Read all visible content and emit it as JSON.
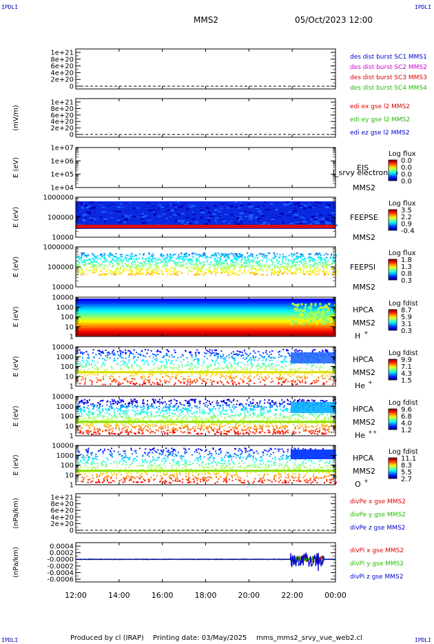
{
  "header": {
    "corner_tl": "IPDLI",
    "corner_tr": "IPDLI",
    "corner_bl": "IPDLI",
    "corner_br": "IPDLI",
    "spacecraft": "MMS2",
    "datetime": "05/Oct/2023 12:00"
  },
  "footer": {
    "produced_by": "Produced by cl (IRAP)",
    "printing_date": "Printing date: 03/May/2025",
    "script": "mms_mms2_srvy_vue_web2.cl"
  },
  "colors": {
    "red": "#dd0000",
    "green": "#22bb00",
    "blue": "#0000cc",
    "magenta": "#cc00cc",
    "dashed": "#000000"
  },
  "chart_data": [
    {
      "type": "line",
      "name": "des-dist-burst",
      "ylabel": "",
      "y_ticks": [
        "1e+21",
        "8e+20",
        "6e+20",
        "4e+20",
        "2e+20",
        "0"
      ],
      "legend": [
        {
          "label": "des dist burst SC1 MMS1",
          "color": "#0000cc"
        },
        {
          "label": "des dist burst SC2 MMS2",
          "color": "#cc00cc"
        },
        {
          "label": "des dist burst SC3 MMS3",
          "color": "#dd0000"
        },
        {
          "label": "des dist burst SC4 MMS4",
          "color": "#22bb00"
        }
      ],
      "series": []
    },
    {
      "type": "line",
      "name": "edi-e-gse",
      "ylabel": "(mV/m)",
      "y_ticks": [
        "1e+21",
        "8e+20",
        "6e+20",
        "4e+20",
        "2e+20",
        "0"
      ],
      "legend": [
        {
          "label": "edi ex gse l2 MMS2",
          "color": "#dd0000"
        },
        {
          "label": "edi ey gse l2 MMS2",
          "color": "#22bb00"
        },
        {
          "label": "edi ez gse l2 MMS2",
          "color": "#0000cc"
        }
      ],
      "series": []
    },
    {
      "type": "heatmap",
      "name": "eis",
      "ylabel": "E (eV)",
      "y_ticks": [
        "1e+07",
        "1e+06",
        "1e+05",
        "1e+04"
      ],
      "labels": [
        "EIS",
        "MMS2"
      ],
      "overlay_text": "l_srvy electron to",
      "colorbar": {
        "title": "Log flux",
        "ticks": [
          "0.0",
          "0.0",
          "0.0",
          "0.0"
        ]
      }
    },
    {
      "type": "heatmap",
      "name": "feeps-e",
      "ylabel": "E (eV)",
      "y_ticks": [
        "1000000",
        "100000",
        "10000"
      ],
      "labels": [
        "FEEPSE",
        "MMS2"
      ],
      "colorbar": {
        "title": "Log flux",
        "ticks": [
          "3.5",
          "2.2",
          "0.9",
          "-0.4"
        ]
      }
    },
    {
      "type": "heatmap",
      "name": "feeps-i",
      "ylabel": "E (eV)",
      "y_ticks": [
        "1000000",
        "100000",
        "10000"
      ],
      "labels": [
        "FEEPSI",
        "MMS2"
      ],
      "colorbar": {
        "title": "Log flux",
        "ticks": [
          "1.8",
          "1.3",
          "0.8",
          "0.3"
        ]
      }
    },
    {
      "type": "heatmap",
      "name": "hpca-h",
      "ylabel": "E (eV)",
      "y_ticks": [
        "10000",
        "1000",
        "100",
        "10",
        "1"
      ],
      "labels": [
        "HPCA",
        "MMS2",
        "H",
        "+"
      ],
      "colorbar": {
        "title": "Log fdist",
        "ticks": [
          "8.7",
          "5.9",
          "3.1",
          "0.3"
        ]
      }
    },
    {
      "type": "heatmap",
      "name": "hpca-he1",
      "ylabel": "E (eV)",
      "y_ticks": [
        "10000",
        "1000",
        "100",
        "10",
        "1"
      ],
      "labels": [
        "HPCA",
        "MMS2",
        "He",
        "+"
      ],
      "colorbar": {
        "title": "Log fdist",
        "ticks": [
          "9.9",
          "7.1",
          "4.3",
          "1.5"
        ]
      }
    },
    {
      "type": "heatmap",
      "name": "hpca-he2",
      "ylabel": "E (eV)",
      "y_ticks": [
        "10000",
        "1000",
        "100",
        "10",
        "1"
      ],
      "labels": [
        "HPCA",
        "MMS2",
        "He",
        "++"
      ],
      "colorbar": {
        "title": "Log fdist",
        "ticks": [
          "9.6",
          "6.8",
          "4.0",
          "1.2"
        ]
      }
    },
    {
      "type": "heatmap",
      "name": "hpca-o",
      "ylabel": "E (eV)",
      "y_ticks": [
        "10000",
        "1000",
        "100",
        "10",
        "1"
      ],
      "labels": [
        "HPCA",
        "MMS2",
        "O",
        "+"
      ],
      "colorbar": {
        "title": "Log fdist",
        "ticks": [
          "11.1",
          "8.3",
          "5.5",
          "2.7"
        ]
      }
    },
    {
      "type": "line",
      "name": "divpe",
      "ylabel": "(nPa/km)",
      "y_ticks": [
        "1e+21",
        "8e+20",
        "6e+20",
        "4e+20",
        "2e+20",
        "0"
      ],
      "legend": [
        {
          "label": "divPe x gse MMS2",
          "color": "#dd0000"
        },
        {
          "label": "divPe y gse MMS2",
          "color": "#22bb00"
        },
        {
          "label": "divPe z gse MMS2",
          "color": "#0000cc"
        }
      ],
      "series": []
    },
    {
      "type": "line",
      "name": "divpi",
      "ylabel": "(nPa/km)",
      "y_ticks": [
        "0.0004",
        "0.0002",
        "-0.0000",
        "-0.0002",
        "-0.0004",
        "-0.0006"
      ],
      "ylim": [
        -0.0006,
        0.0004
      ],
      "legend": [
        {
          "label": "divPi x gse MMS2",
          "color": "#dd0000"
        },
        {
          "label": "divPi y gse MMS2",
          "color": "#22bb00"
        },
        {
          "label": "divPi z gse MMS2",
          "color": "#0000cc"
        }
      ],
      "series": [
        {
          "name": "divPi x gse MMS2",
          "x": [
            "12:00",
            "14:00",
            "16:00",
            "18:00",
            "20:00",
            "22:00",
            "22:30",
            "23:00",
            "00:00"
          ],
          "values": [
            0.0,
            0.0,
            0.0,
            0.0,
            0.0,
            0.0,
            0.0001,
            0.0,
            0.0
          ]
        },
        {
          "name": "divPi y gse MMS2",
          "x": [
            "12:00",
            "14:00",
            "16:00",
            "18:00",
            "20:00",
            "22:00",
            "22:30",
            "23:00",
            "00:00"
          ],
          "values": [
            0.0,
            0.0,
            0.0,
            0.0,
            0.0,
            0.0,
            0.0001,
            0.0,
            0.0
          ]
        },
        {
          "name": "divPi z gse MMS2",
          "x": [
            "12:00",
            "14:00",
            "16:00",
            "18:00",
            "20:00",
            "22:00",
            "22:30",
            "23:00",
            "00:00"
          ],
          "values": [
            0.0,
            0.0,
            0.0,
            0.0,
            0.0,
            0.0,
            -0.0003,
            -0.0001,
            0.0
          ]
        }
      ]
    }
  ],
  "x_axis": {
    "ticks": [
      "12:00",
      "14:00",
      "16:00",
      "18:00",
      "20:00",
      "22:00",
      "00:00"
    ]
  }
}
